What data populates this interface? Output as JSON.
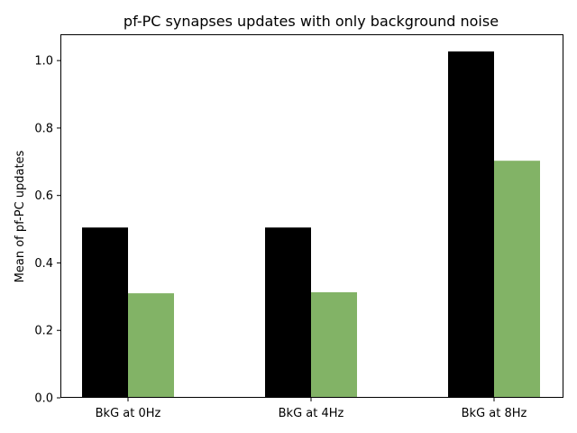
{
  "chart_data": {
    "type": "bar",
    "title": "pf-PC synapses updates with only background noise",
    "xlabel": "",
    "ylabel": "Mean of pf-PC updates",
    "categories": [
      "BkG at 0Hz",
      "BkG at 4Hz",
      "BkG at 8Hz"
    ],
    "series": [
      {
        "color": "#000000",
        "values": [
          0.505,
          0.505,
          1.027
        ]
      },
      {
        "color": "#82b366",
        "values": [
          0.31,
          0.313,
          0.703
        ]
      }
    ],
    "yticks": [
      0.0,
      0.2,
      0.4,
      0.6,
      0.8,
      1.0
    ],
    "ytick_labels": [
      "0.0",
      "0.2",
      "0.4",
      "0.6",
      "0.8",
      "1.0"
    ],
    "ylim": [
      0,
      1.078
    ],
    "grid": false,
    "legend": "none"
  }
}
